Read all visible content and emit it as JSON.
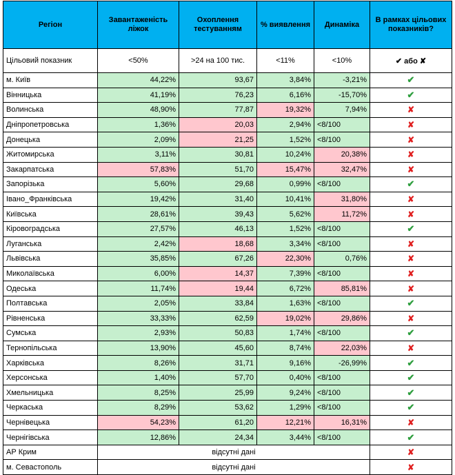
{
  "headers": [
    "Регіон",
    "Завантаженість ліжок",
    "Охоплення тестуванням",
    "% виявлення",
    "Динаміка",
    "В рамках цільових показників?"
  ],
  "target_row": {
    "label": "Цільовий показник",
    "values": [
      "<50%",
      ">24 на 100 тис.",
      "<11%",
      "<10%"
    ],
    "mark_legend": "✔ або ✘"
  },
  "colors": {
    "header_bg": "#00b0f0",
    "good_bg": "#c6efce",
    "bad_bg": "#ffc7ce",
    "check": "#2e9e3e",
    "cross": "#e02020"
  },
  "symbols": {
    "ok": "✔",
    "no": "✘"
  },
  "rows": [
    {
      "region": "м. Київ",
      "beds": "44,22%",
      "beds_status": "g",
      "testing": "93,67",
      "testing_status": "g",
      "detection": "3,84%",
      "detection_status": "g",
      "dynamics": "-3,21%",
      "dynamics_status": "g",
      "within_target": true
    },
    {
      "region": "Вінницька",
      "beds": "41,19%",
      "beds_status": "g",
      "testing": "76,23",
      "testing_status": "g",
      "detection": "6,16%",
      "detection_status": "g",
      "dynamics": "-15,70%",
      "dynamics_status": "g",
      "within_target": true
    },
    {
      "region": "Волинська",
      "beds": "48,90%",
      "beds_status": "g",
      "testing": "77,87",
      "testing_status": "g",
      "detection": "19,32%",
      "detection_status": "r",
      "dynamics": "7,94%",
      "dynamics_status": "g",
      "within_target": false
    },
    {
      "region": "Дніпропетровська",
      "beds": "1,36%",
      "beds_status": "g",
      "testing": "20,03",
      "testing_status": "r",
      "detection": "2,94%",
      "detection_status": "g",
      "dynamics": "<8/100",
      "dynamics_status": "g",
      "within_target": false
    },
    {
      "region": "Донецька",
      "beds": "2,09%",
      "beds_status": "g",
      "testing": "21,25",
      "testing_status": "r",
      "detection": "1,52%",
      "detection_status": "g",
      "dynamics": "<8/100",
      "dynamics_status": "g",
      "within_target": false
    },
    {
      "region": "Житомирська",
      "beds": "3,11%",
      "beds_status": "g",
      "testing": "30,81",
      "testing_status": "g",
      "detection": "10,24%",
      "detection_status": "g",
      "dynamics": "20,38%",
      "dynamics_status": "r",
      "within_target": false
    },
    {
      "region": "Закарпатська",
      "beds": "57,83%",
      "beds_status": "r",
      "testing": "51,70",
      "testing_status": "g",
      "detection": "15,47%",
      "detection_status": "r",
      "dynamics": "32,47%",
      "dynamics_status": "r",
      "within_target": false
    },
    {
      "region": "Запорізька",
      "beds": "5,60%",
      "beds_status": "g",
      "testing": "29,68",
      "testing_status": "g",
      "detection": "0,99%",
      "detection_status": "g",
      "dynamics": "<8/100",
      "dynamics_status": "g",
      "within_target": true
    },
    {
      "region": "Івано_Франківська",
      "beds": "19,42%",
      "beds_status": "g",
      "testing": "31,40",
      "testing_status": "g",
      "detection": "10,41%",
      "detection_status": "g",
      "dynamics": "31,80%",
      "dynamics_status": "r",
      "within_target": false
    },
    {
      "region": "Київська",
      "beds": "28,61%",
      "beds_status": "g",
      "testing": "39,43",
      "testing_status": "g",
      "detection": "5,62%",
      "detection_status": "g",
      "dynamics": "11,72%",
      "dynamics_status": "r",
      "within_target": false
    },
    {
      "region": "Кіровоградська",
      "beds": "27,57%",
      "beds_status": "g",
      "testing": "46,13",
      "testing_status": "g",
      "detection": "1,52%",
      "detection_status": "g",
      "dynamics": "<8/100",
      "dynamics_status": "g",
      "within_target": true
    },
    {
      "region": "Луганська",
      "beds": "2,42%",
      "beds_status": "g",
      "testing": "18,68",
      "testing_status": "r",
      "detection": "3,34%",
      "detection_status": "g",
      "dynamics": "<8/100",
      "dynamics_status": "g",
      "within_target": false
    },
    {
      "region": "Львівська",
      "beds": "35,85%",
      "beds_status": "g",
      "testing": "67,26",
      "testing_status": "g",
      "detection": "22,30%",
      "detection_status": "r",
      "dynamics": "0,76%",
      "dynamics_status": "g",
      "within_target": false
    },
    {
      "region": "Миколаївська",
      "beds": "6,00%",
      "beds_status": "g",
      "testing": "14,37",
      "testing_status": "r",
      "detection": "7,39%",
      "detection_status": "g",
      "dynamics": "<8/100",
      "dynamics_status": "g",
      "within_target": false
    },
    {
      "region": "Одеська",
      "beds": "11,74%",
      "beds_status": "g",
      "testing": "19,44",
      "testing_status": "r",
      "detection": "6,72%",
      "detection_status": "g",
      "dynamics": "85,81%",
      "dynamics_status": "r",
      "within_target": false
    },
    {
      "region": "Полтавська",
      "beds": "2,05%",
      "beds_status": "g",
      "testing": "33,84",
      "testing_status": "g",
      "detection": "1,63%",
      "detection_status": "g",
      "dynamics": "<8/100",
      "dynamics_status": "g",
      "within_target": true
    },
    {
      "region": "Рівненська",
      "beds": "33,33%",
      "beds_status": "g",
      "testing": "62,59",
      "testing_status": "g",
      "detection": "19,02%",
      "detection_status": "r",
      "dynamics": "29,86%",
      "dynamics_status": "r",
      "within_target": false
    },
    {
      "region": "Сумська",
      "beds": "2,93%",
      "beds_status": "g",
      "testing": "50,83",
      "testing_status": "g",
      "detection": "1,74%",
      "detection_status": "g",
      "dynamics": "<8/100",
      "dynamics_status": "g",
      "within_target": true
    },
    {
      "region": "Тернопільська",
      "beds": "13,90%",
      "beds_status": "g",
      "testing": "45,60",
      "testing_status": "g",
      "detection": "8,74%",
      "detection_status": "g",
      "dynamics": "22,03%",
      "dynamics_status": "r",
      "within_target": false
    },
    {
      "region": "Харківська",
      "beds": "8,26%",
      "beds_status": "g",
      "testing": "31,71",
      "testing_status": "g",
      "detection": "9,16%",
      "detection_status": "g",
      "dynamics": "-26,99%",
      "dynamics_status": "g",
      "within_target": true
    },
    {
      "region": "Херсонська",
      "beds": "1,40%",
      "beds_status": "g",
      "testing": "57,70",
      "testing_status": "g",
      "detection": "0,40%",
      "detection_status": "g",
      "dynamics": "<8/100",
      "dynamics_status": "g",
      "within_target": true
    },
    {
      "region": "Хмельницька",
      "beds": "8,25%",
      "beds_status": "g",
      "testing": "25,99",
      "testing_status": "g",
      "detection": "9,24%",
      "detection_status": "g",
      "dynamics": "<8/100",
      "dynamics_status": "g",
      "within_target": true
    },
    {
      "region": "Черкаська",
      "beds": "8,29%",
      "beds_status": "g",
      "testing": "53,62",
      "testing_status": "g",
      "detection": "1,29%",
      "detection_status": "g",
      "dynamics": "<8/100",
      "dynamics_status": "g",
      "within_target": true
    },
    {
      "region": "Чернівецька",
      "beds": "54,23%",
      "beds_status": "r",
      "testing": "61,20",
      "testing_status": "g",
      "detection": "12,21%",
      "detection_status": "r",
      "dynamics": "16,31%",
      "dynamics_status": "r",
      "within_target": false
    },
    {
      "region": "Чернігівська",
      "beds": "12,86%",
      "beds_status": "g",
      "testing": "24,34",
      "testing_status": "g",
      "detection": "3,44%",
      "detection_status": "g",
      "dynamics": "<8/100",
      "dynamics_status": "g",
      "within_target": true
    }
  ],
  "missing_rows": [
    {
      "region": "АР Крим",
      "note": "відсутні дані",
      "within_target": false
    },
    {
      "region": "м. Севастополь",
      "note": "відсутні дані",
      "within_target": false
    }
  ]
}
